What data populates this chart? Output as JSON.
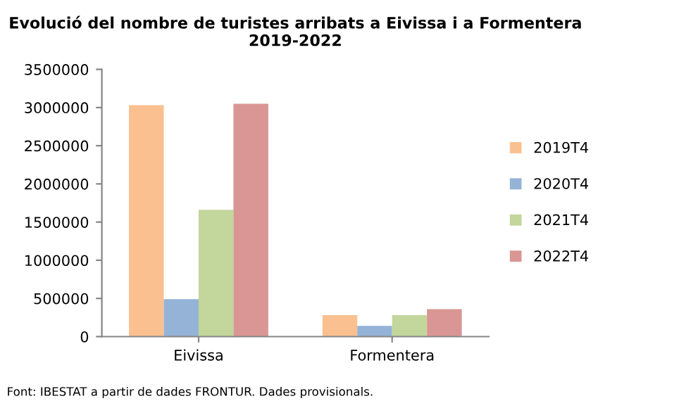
{
  "chart_data": {
    "type": "bar",
    "title": "Evolució del nombre de turistes arribats a Eivissa i a Formentera\n2019-2022",
    "categories": [
      "Eivissa",
      "Formentera"
    ],
    "series": [
      {
        "name": "2019T4",
        "color": "#fac090",
        "values": [
          3030000,
          280000
        ]
      },
      {
        "name": "2020T4",
        "color": "#95b3d7",
        "values": [
          490000,
          140000
        ]
      },
      {
        "name": "2021T4",
        "color": "#c3d69b",
        "values": [
          1660000,
          280000
        ]
      },
      {
        "name": "2022T4",
        "color": "#d99694",
        "values": [
          3050000,
          360000
        ]
      }
    ],
    "ylim": [
      0,
      3500000
    ],
    "yticks": [
      0,
      500000,
      1000000,
      1500000,
      2000000,
      2500000,
      3000000,
      3500000
    ],
    "grid": false,
    "legend": "right",
    "annotations": [
      "Font: IBESTAT a partir de dades FRONTUR. Dades provisionals."
    ]
  }
}
